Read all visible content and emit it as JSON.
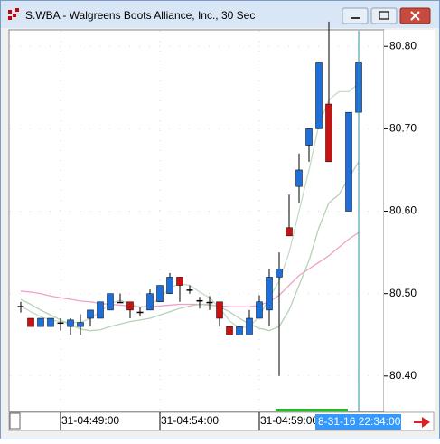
{
  "chart_data": {
    "type": "candlestick",
    "title": "S.WBA - Walgreens Boots Alliance, Inc., 30 Sec",
    "categories": [
      null,
      null,
      null,
      null,
      "31-04:49:00",
      null,
      null,
      null,
      null,
      null,
      null,
      null,
      null,
      null,
      "31-04:54:00",
      null,
      null,
      null,
      null,
      null,
      null,
      null,
      null,
      null,
      "31-04:59:00",
      null,
      null,
      null,
      null,
      null,
      null,
      null,
      null,
      null,
      null
    ],
    "cursor_label": "8-31-16 22:34:00",
    "open": [
      80.485,
      80.47,
      80.46,
      80.46,
      80.465,
      80.46,
      80.46,
      80.47,
      80.47,
      80.48,
      80.49,
      80.49,
      80.478,
      80.48,
      80.49,
      80.5,
      80.52,
      80.505,
      80.492,
      80.49,
      80.49,
      80.46,
      80.45,
      80.45,
      80.47,
      80.48,
      80.52,
      80.58,
      80.63,
      80.68,
      80.7,
      80.73,
      null,
      80.6,
      80.72
    ],
    "high": [
      80.49,
      80.47,
      80.47,
      80.47,
      80.47,
      80.47,
      80.475,
      80.48,
      80.49,
      80.5,
      80.5,
      80.49,
      80.483,
      80.505,
      80.51,
      80.525,
      80.52,
      80.51,
      80.496,
      80.497,
      80.49,
      80.46,
      80.46,
      80.48,
      80.498,
      80.53,
      80.55,
      80.62,
      80.67,
      80.7,
      80.78,
      80.83,
      null,
      80.72,
      80.78
    ],
    "low": [
      80.477,
      80.46,
      80.46,
      80.46,
      80.455,
      80.45,
      80.45,
      80.46,
      80.47,
      80.48,
      80.49,
      80.47,
      80.472,
      80.48,
      80.49,
      80.5,
      80.49,
      80.5,
      80.482,
      80.48,
      80.46,
      80.45,
      80.45,
      80.45,
      80.47,
      80.46,
      80.4,
      80.57,
      80.61,
      80.66,
      80.7,
      80.66,
      null,
      80.6,
      80.71
    ],
    "close": [
      80.485,
      80.46,
      80.47,
      80.47,
      80.465,
      80.468,
      80.465,
      80.48,
      80.49,
      80.5,
      80.49,
      80.48,
      80.478,
      80.5,
      80.51,
      80.52,
      80.51,
      80.505,
      80.492,
      80.49,
      80.47,
      80.45,
      80.46,
      80.47,
      80.49,
      80.52,
      80.53,
      80.57,
      80.65,
      80.7,
      80.78,
      80.66,
      null,
      80.72,
      80.78
    ],
    "up_color": "#1e6fd9",
    "down_color": "#cc1111",
    "doji_color": "#000000",
    "series": [
      {
        "color": "#f0a0c8",
        "values": [
          80.503,
          80.502,
          80.5,
          80.497,
          80.495,
          80.493,
          80.491,
          80.49,
          80.488,
          80.487,
          80.486,
          80.485,
          80.484,
          80.484,
          80.485,
          80.486,
          80.487,
          80.487,
          80.487,
          80.486,
          80.485,
          80.484,
          80.484,
          80.484,
          80.486,
          80.49,
          80.498,
          80.51,
          80.522,
          80.53,
          80.538,
          80.546,
          80.556,
          80.566,
          80.574
        ]
      },
      {
        "color": "#c4dcc4",
        "values": [
          80.485,
          80.478,
          80.472,
          80.468,
          80.466,
          80.465,
          80.465,
          80.47,
          80.478,
          80.488,
          80.492,
          80.488,
          80.483,
          80.486,
          80.495,
          80.507,
          80.512,
          80.51,
          80.502,
          80.495,
          80.483,
          80.467,
          80.458,
          80.46,
          80.472,
          80.495,
          80.515,
          80.55,
          80.6,
          80.65,
          80.705,
          80.735,
          80.745,
          80.745,
          80.755
        ]
      },
      {
        "color": "#b4d2b4",
        "values": [
          80.493,
          80.487,
          80.48,
          80.474,
          80.468,
          80.462,
          80.457,
          80.455,
          80.456,
          80.46,
          80.463,
          80.466,
          80.468,
          80.47,
          80.474,
          80.478,
          80.482,
          80.485,
          80.487,
          80.487,
          80.484,
          80.478,
          80.47,
          80.463,
          80.458,
          80.455,
          80.46,
          80.48,
          80.51,
          80.54,
          80.58,
          80.61,
          80.62,
          80.64,
          80.66
        ]
      }
    ],
    "ylim": [
      80.357,
      80.82
    ],
    "yticks": [
      {
        "value": 80.4,
        "label": "80.40"
      },
      {
        "value": 80.5,
        "label": "80.50"
      },
      {
        "value": 80.6,
        "label": "80.60"
      },
      {
        "value": 80.7,
        "label": "80.70"
      },
      {
        "value": 80.8,
        "label": "80.80"
      }
    ],
    "grid": true
  }
}
